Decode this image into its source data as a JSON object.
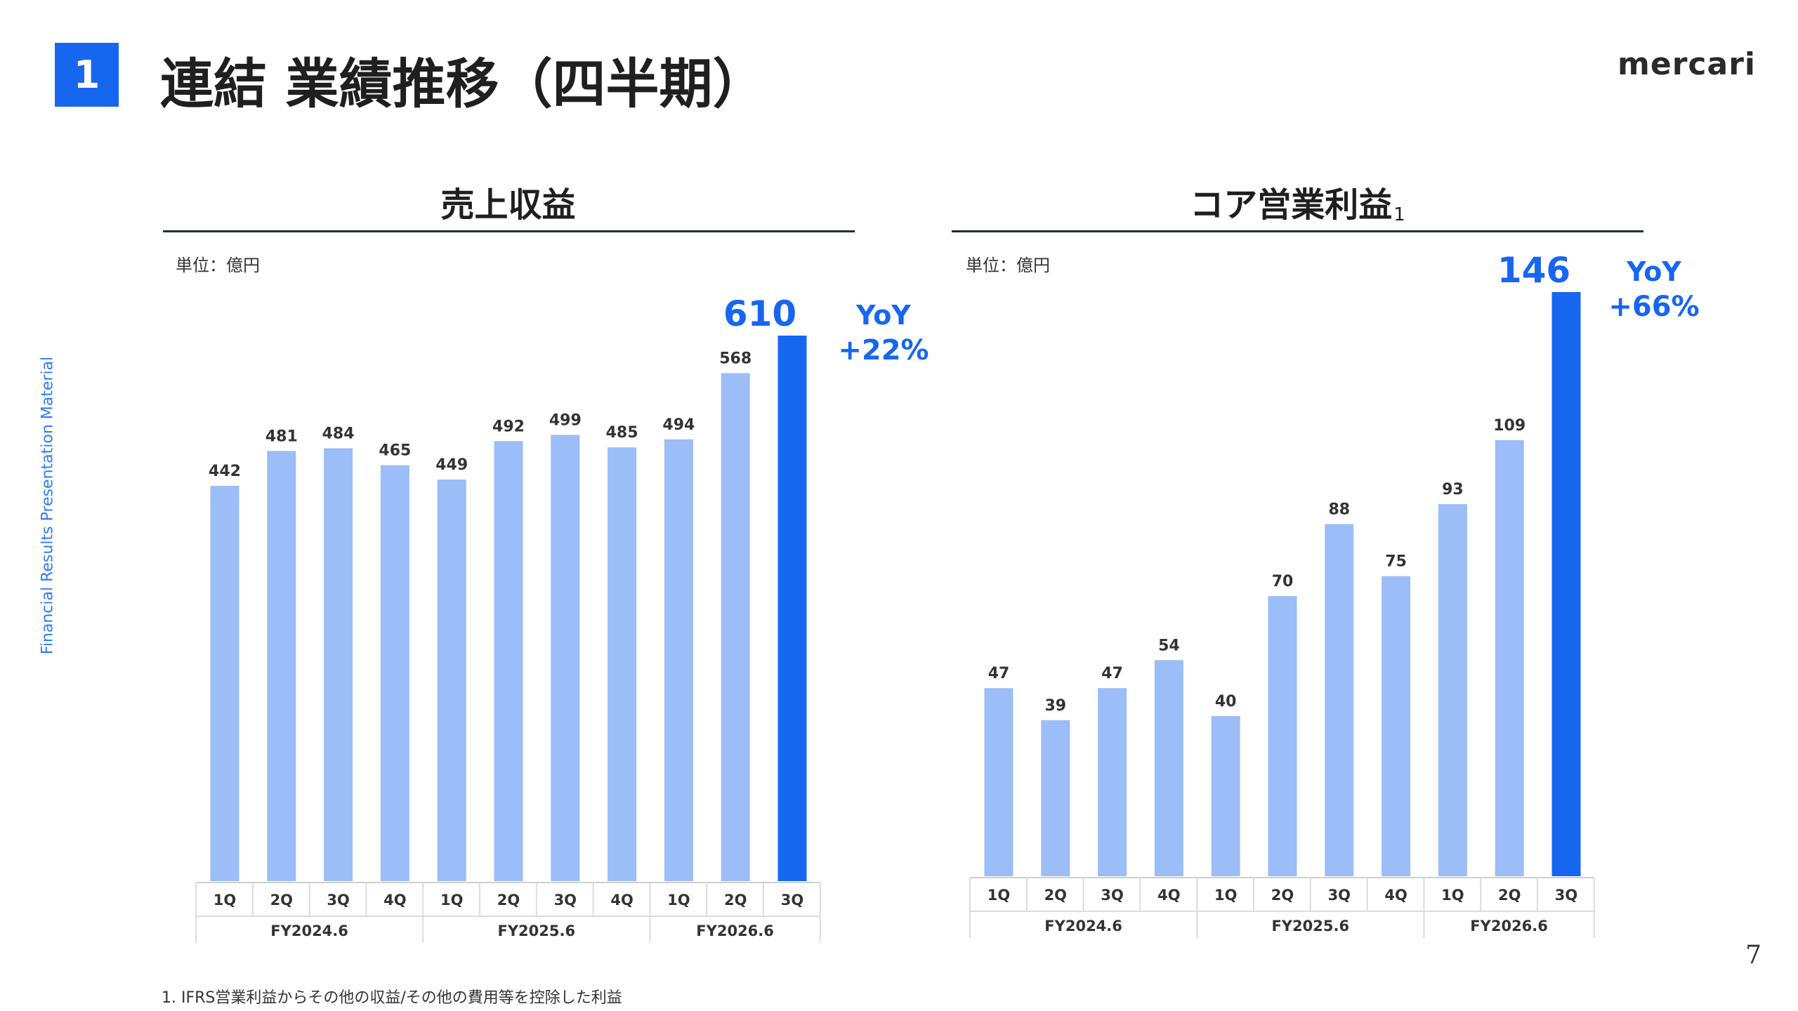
{
  "header": {
    "section_number": "1",
    "title": "連結 業績推移（四半期）",
    "brand": "mercari"
  },
  "side_label": "Financial Results Presentation Material",
  "page_number": "7",
  "footnote": "1. IFRS営業利益からその他の収益/その他の費用等を控除した利益",
  "colors": {
    "bar_light": "#9bbdf8",
    "bar_highlight": "#1766f0",
    "accent_text": "#1766f0"
  },
  "chart_data": [
    {
      "type": "bar",
      "title": "売上収益",
      "title_suffix": "",
      "unit": "単位：億円",
      "categories": [
        "1Q",
        "2Q",
        "3Q",
        "4Q",
        "1Q",
        "2Q",
        "3Q",
        "4Q",
        "1Q",
        "2Q",
        "3Q"
      ],
      "groups": [
        {
          "label": "FY2024.6",
          "count": 4
        },
        {
          "label": "FY2025.6",
          "count": 4
        },
        {
          "label": "FY2026.6",
          "count": 3
        }
      ],
      "values": [
        442,
        481,
        484,
        465,
        449,
        492,
        499,
        485,
        494,
        568,
        610
      ],
      "highlight_index": 10,
      "yoy_label": "YoY",
      "yoy_value": "+22%",
      "ylim": [
        0,
        610
      ]
    },
    {
      "type": "bar",
      "title": "コア営業利益",
      "title_suffix": "1",
      "unit": "単位：億円",
      "categories": [
        "1Q",
        "2Q",
        "3Q",
        "4Q",
        "1Q",
        "2Q",
        "3Q",
        "4Q",
        "1Q",
        "2Q",
        "3Q"
      ],
      "groups": [
        {
          "label": "FY2024.6",
          "count": 4
        },
        {
          "label": "FY2025.6",
          "count": 4
        },
        {
          "label": "FY2026.6",
          "count": 3
        }
      ],
      "values": [
        47,
        39,
        47,
        54,
        40,
        70,
        88,
        75,
        93,
        109,
        146
      ],
      "highlight_index": 10,
      "yoy_label": "YoY",
      "yoy_value": "+66%",
      "ylim": [
        0,
        146
      ]
    }
  ]
}
